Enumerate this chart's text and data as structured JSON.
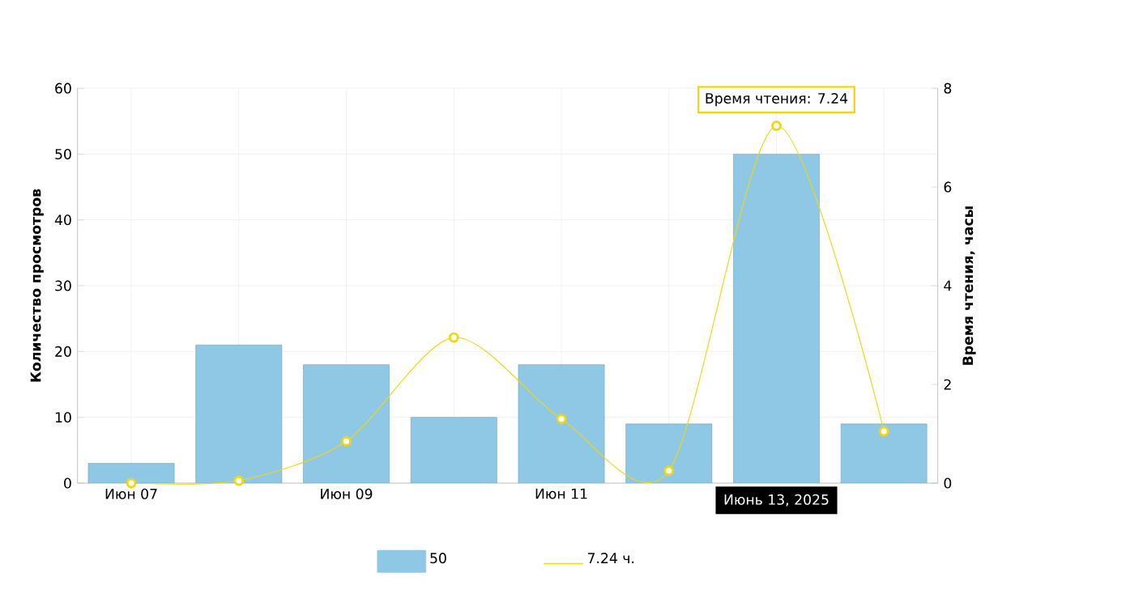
{
  "chart_data": {
    "type": "bar",
    "ylabel": "Количество просмотров",
    "y2label": "Время чтения, часы",
    "categories": [
      "Июн 07",
      null,
      "Июн 09",
      null,
      "Июн 11",
      null,
      null,
      null
    ],
    "series": [
      {
        "name": "50",
        "color": "#8ec8e4",
        "values": [
          3,
          21,
          18,
          10,
          18,
          9,
          50,
          9
        ]
      },
      {
        "name": "7.24 ч.",
        "type": "line",
        "axis": "y2",
        "color": "#f2d70f",
        "marker": "circle",
        "values": [
          0,
          0.05,
          0.85,
          2.95,
          1.3,
          0.25,
          7.24,
          1.05
        ]
      }
    ],
    "ylim": [
      0,
      60
    ],
    "yticks": [
      0,
      10,
      20,
      30,
      40,
      50,
      60
    ],
    "y2lim": [
      0,
      8
    ],
    "y2ticks": [
      0,
      2,
      4,
      6,
      8
    ],
    "grid": true,
    "legend": "bottom",
    "annotations": [
      "Время чтения: 7.24",
      "Июнь 13, 2025"
    ]
  }
}
